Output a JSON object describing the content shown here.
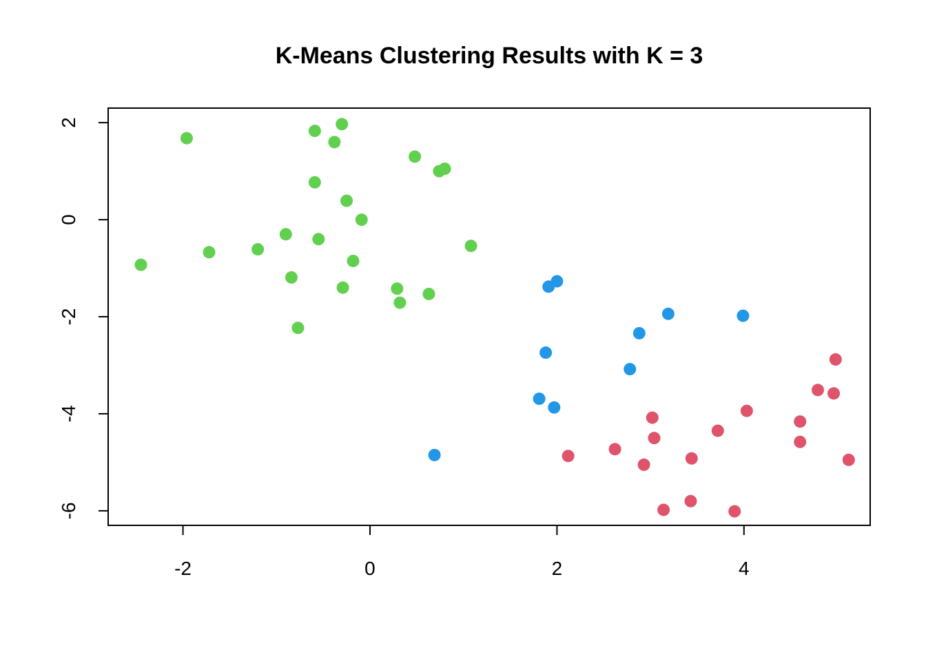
{
  "chart_data": {
    "type": "scatter",
    "title": "K-Means Clustering Results with K = 3",
    "xlabel": "",
    "ylabel": "",
    "xlim": [
      -2.8,
      5.35
    ],
    "ylim": [
      -6.3,
      2.3
    ],
    "x_ticks": [
      -2,
      0,
      2,
      4
    ],
    "y_ticks": [
      -6,
      -4,
      -2,
      0,
      2
    ],
    "x_tick_labels": [
      "-2",
      "0",
      "2",
      "4"
    ],
    "y_tick_labels": [
      "-6",
      "-4",
      "-2",
      "0",
      "2"
    ],
    "grid": false,
    "legend": "none",
    "marker": "filled-circle",
    "series": [
      {
        "cluster": 1,
        "color": "#DF536B",
        "points": [
          {
            "x": 2.12,
            "y": -4.87
          },
          {
            "x": 2.62,
            "y": -4.73
          },
          {
            "x": 2.93,
            "y": -5.05
          },
          {
            "x": 3.02,
            "y": -4.08
          },
          {
            "x": 3.04,
            "y": -4.5
          },
          {
            "x": 3.14,
            "y": -5.98
          },
          {
            "x": 3.43,
            "y": -5.8
          },
          {
            "x": 3.44,
            "y": -4.92
          },
          {
            "x": 3.72,
            "y": -4.35
          },
          {
            "x": 3.9,
            "y": -6.01
          },
          {
            "x": 4.03,
            "y": -3.94
          },
          {
            "x": 4.6,
            "y": -4.16
          },
          {
            "x": 4.6,
            "y": -4.58
          },
          {
            "x": 4.79,
            "y": -3.51
          },
          {
            "x": 4.96,
            "y": -3.58
          },
          {
            "x": 4.98,
            "y": -2.88
          },
          {
            "x": 5.12,
            "y": -4.95
          }
        ]
      },
      {
        "cluster": 2,
        "color": "#61D04F",
        "points": [
          {
            "x": -2.45,
            "y": -0.93
          },
          {
            "x": -1.96,
            "y": 1.68
          },
          {
            "x": -1.72,
            "y": -0.67
          },
          {
            "x": -1.2,
            "y": -0.61
          },
          {
            "x": -0.9,
            "y": -0.3
          },
          {
            "x": -0.84,
            "y": -1.19
          },
          {
            "x": -0.77,
            "y": -2.23
          },
          {
            "x": -0.59,
            "y": 1.83
          },
          {
            "x": -0.59,
            "y": 0.77
          },
          {
            "x": -0.55,
            "y": -0.4
          },
          {
            "x": -0.38,
            "y": 1.6
          },
          {
            "x": -0.3,
            "y": 1.97
          },
          {
            "x": -0.29,
            "y": -1.4
          },
          {
            "x": -0.25,
            "y": 0.39
          },
          {
            "x": -0.18,
            "y": -0.85
          },
          {
            "x": -0.09,
            "y": 0.0
          },
          {
            "x": 0.29,
            "y": -1.42
          },
          {
            "x": 0.32,
            "y": -1.71
          },
          {
            "x": 0.48,
            "y": 1.3
          },
          {
            "x": 0.63,
            "y": -1.53
          },
          {
            "x": 0.74,
            "y": 1.0
          },
          {
            "x": 0.8,
            "y": 1.05
          },
          {
            "x": 1.08,
            "y": -0.54
          }
        ]
      },
      {
        "cluster": 3,
        "color": "#2297E6",
        "points": [
          {
            "x": 0.69,
            "y": -4.85
          },
          {
            "x": 1.81,
            "y": -3.69
          },
          {
            "x": 1.88,
            "y": -2.74
          },
          {
            "x": 1.91,
            "y": -1.38
          },
          {
            "x": 1.97,
            "y": -3.87
          },
          {
            "x": 2.0,
            "y": -1.27
          },
          {
            "x": 2.78,
            "y": -3.08
          },
          {
            "x": 2.88,
            "y": -2.34
          },
          {
            "x": 3.19,
            "y": -1.94
          },
          {
            "x": 3.99,
            "y": -1.98
          }
        ]
      }
    ]
  }
}
